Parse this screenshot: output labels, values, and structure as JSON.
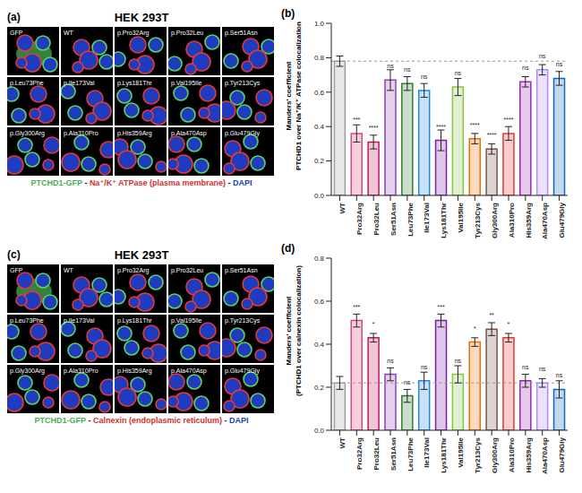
{
  "image_panels": [
    {
      "panel": "(a)",
      "title": "HEK 293T",
      "tiles": [
        "GFP",
        "WT",
        "p.Pro32Arg",
        "p.Pro32Leu",
        "p.Ser51Asn",
        "p.Leu73Phe",
        "p.Ile173Val",
        "p.Lys181Thr",
        "p.Val195Ile",
        "p.Tyr213Cys",
        "p.Gly300Arg",
        "p.Ala310Pro",
        "p.His359Arg",
        "p.Ala470Asp",
        "p.Glu479Gly"
      ],
      "caption": [
        {
          "text": "PTCHD1-GFP",
          "color": "#4caf50"
        },
        {
          "text": " - ",
          "color": "#222222"
        },
        {
          "text": "Na⁺/K⁺ ATPase (plasma membrane)",
          "color": "#d32f2f"
        },
        {
          "text": " - ",
          "color": "#222222"
        },
        {
          "text": "DAPI",
          "color": "#1a3fb0"
        }
      ]
    },
    {
      "panel": "(c)",
      "title": "HEK 293T",
      "tiles": [
        "GFP",
        "WT",
        "p.Pro32Arg",
        "p.Pro32Leu",
        "p.Ser51Asn",
        "p.Leu73Phe",
        "p.Ile173Val",
        "p.Lys181Thr",
        "p.Val195Ile",
        "p.Tyr213Cys",
        "p.Gly300Arg",
        "p.Ala310Pro",
        "p.His359Arg",
        "p.Ala470Asp",
        "p.Glu479Gly"
      ],
      "caption": [
        {
          "text": "PTCHD1-GFP",
          "color": "#4caf50"
        },
        {
          "text": " - ",
          "color": "#222222"
        },
        {
          "text": "Calnexin (endoplasmic reticulum)",
          "color": "#d32f2f"
        },
        {
          "text": " - ",
          "color": "#222222"
        },
        {
          "text": "DAPI",
          "color": "#1a3fb0"
        }
      ]
    }
  ],
  "chart_data": [
    {
      "type": "bar",
      "panel": "(b)",
      "y_label": [
        "Manders' coefficient",
        "PTCHD1 over Na⁺/K⁺ ATPase colocalization"
      ],
      "categories": [
        "WT",
        "Pro32Arg",
        "Pro32Leu",
        "Ser51Asn",
        "Leu73Phe",
        "Ile173Val",
        "Lys181Thr",
        "Val195Ile",
        "Tyr213Cys",
        "Gly300Arg",
        "Ala310Pro",
        "His359Arg",
        "Ala470Asp",
        "Glu479Gly"
      ],
      "values": [
        0.78,
        0.36,
        0.31,
        0.67,
        0.65,
        0.61,
        0.32,
        0.63,
        0.33,
        0.27,
        0.36,
        0.66,
        0.73,
        0.68
      ],
      "errors": [
        0.03,
        0.05,
        0.04,
        0.06,
        0.04,
        0.04,
        0.06,
        0.05,
        0.03,
        0.03,
        0.04,
        0.03,
        0.03,
        0.04
      ],
      "significance": [
        null,
        "***",
        "****",
        "ns",
        "ns",
        "ns",
        "****",
        "ns",
        "****",
        "****",
        "****",
        "ns",
        "ns",
        "ns"
      ],
      "colors": [
        "#9e9e9e",
        "#e0457b",
        "#c2185b",
        "#8e44ad",
        "#2e7d32",
        "#1e88e5",
        "#7b1fa2",
        "#8bc34a",
        "#ef6c00",
        "#795548",
        "#e53935",
        "#9c27b0",
        "#b388ff",
        "#1565c0"
      ],
      "ylim": [
        0,
        1
      ],
      "yticks": [
        {
          "value": 0,
          "label": "0.0"
        },
        0.2,
        0.4,
        0.6,
        0.8,
        {
          "value": 1,
          "label": "1.0"
        }
      ]
    },
    {
      "type": "bar",
      "panel": "(d)",
      "y_label": [
        "Manders' coefficient",
        "(PTCHD1 over calnexin colocalization)"
      ],
      "categories": [
        "WT",
        "Pro32Arg",
        "Pro32Leu",
        "Ser51Asn",
        "Leu73Phe",
        "Ile173Val",
        "Lys181Thr",
        "Val195Ile",
        "Tyr213Cys",
        "Gly300Arg",
        "Ala310Pro",
        "His359Arg",
        "Ala470Asp",
        "Glu479Gly"
      ],
      "values": [
        0.22,
        0.51,
        0.43,
        0.26,
        0.16,
        0.23,
        0.51,
        0.26,
        0.41,
        0.47,
        0.43,
        0.23,
        0.22,
        0.19
      ],
      "errors": [
        0.03,
        0.03,
        0.02,
        0.03,
        0.03,
        0.04,
        0.03,
        0.04,
        0.02,
        0.03,
        0.02,
        0.03,
        0.02,
        0.04
      ],
      "significance": [
        null,
        "***",
        "*",
        "ns",
        "ns",
        "ns",
        "***",
        "ns",
        "*",
        "**",
        "*",
        "ns",
        "ns",
        "ns"
      ],
      "colors": [
        "#9e9e9e",
        "#e0457b",
        "#c2185b",
        "#8e44ad",
        "#2e7d32",
        "#1e88e5",
        "#7b1fa2",
        "#8bc34a",
        "#ef6c00",
        "#795548",
        "#e53935",
        "#9c27b0",
        "#b388ff",
        "#1565c0"
      ],
      "ylim": [
        0,
        0.8
      ],
      "yticks": [
        {
          "value": 0,
          "label": "0.0"
        },
        0.2,
        0.4,
        0.6,
        0.8
      ]
    }
  ]
}
